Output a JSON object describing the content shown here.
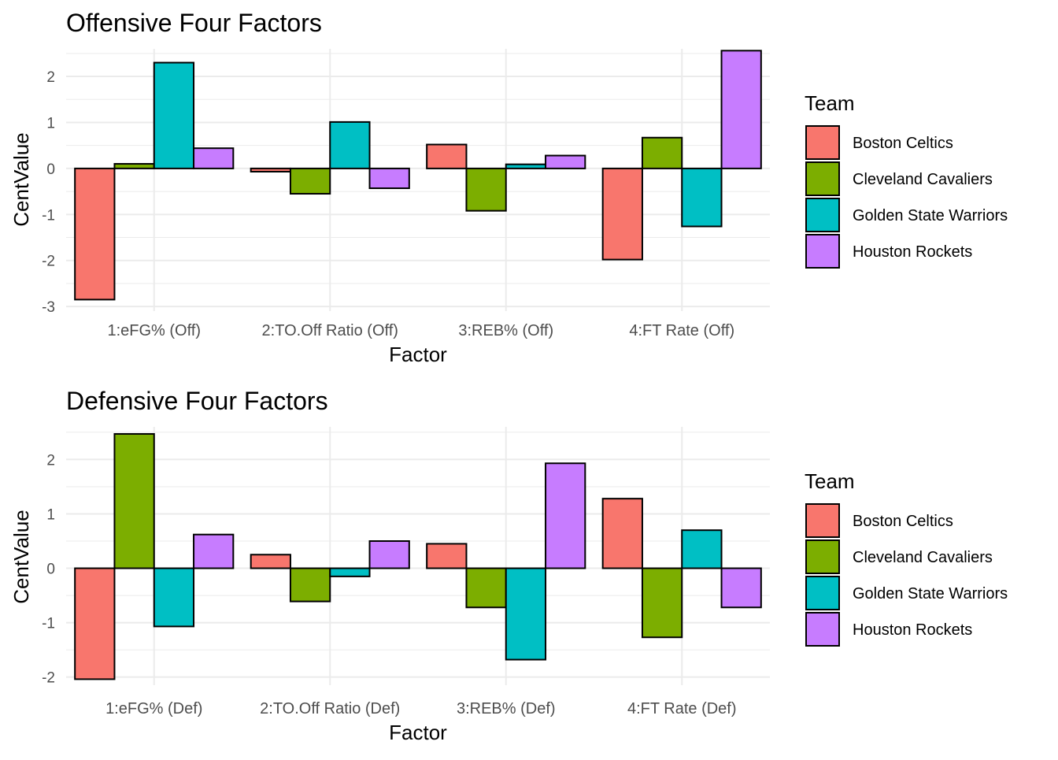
{
  "chart_data": [
    {
      "type": "bar",
      "title": "Offensive Four Factors",
      "xlabel": "Factor",
      "ylabel": "CentValue",
      "categories": [
        "1:eFG% (Off)",
        "2:TO.Off Ratio (Off)",
        "3:REB% (Off)",
        "4:FT Rate (Off)"
      ],
      "ylim": [
        -3.1,
        2.6
      ],
      "yticks": [
        -3,
        -2,
        -1,
        0,
        1,
        2
      ],
      "grid": true,
      "legend": {
        "title": "Team",
        "position": "right"
      },
      "series": [
        {
          "name": "Boston Celtics",
          "color": "#F8766D",
          "values": [
            -2.85,
            -0.07,
            0.52,
            -1.98
          ]
        },
        {
          "name": "Cleveland Cavaliers",
          "color": "#7CAE00",
          "values": [
            0.1,
            -0.55,
            -0.92,
            0.67
          ]
        },
        {
          "name": "Golden State Warriors",
          "color": "#00BFC4",
          "values": [
            2.3,
            1.01,
            0.09,
            -1.26
          ]
        },
        {
          "name": "Houston Rockets",
          "color": "#C77CFF",
          "values": [
            0.44,
            -0.43,
            0.28,
            2.56
          ]
        }
      ]
    },
    {
      "type": "bar",
      "title": "Defensive Four Factors",
      "xlabel": "Factor",
      "ylabel": "CentValue",
      "categories": [
        "1:eFG% (Def)",
        "2:TO.Off Ratio (Def)",
        "3:REB% (Def)",
        "4:FT Rate (Def)"
      ],
      "ylim": [
        -2.15,
        2.6
      ],
      "yticks": [
        -2,
        -1,
        0,
        1,
        2
      ],
      "grid": true,
      "legend": {
        "title": "Team",
        "position": "right"
      },
      "series": [
        {
          "name": "Boston Celtics",
          "color": "#F8766D",
          "values": [
            -2.04,
            0.25,
            0.45,
            1.28
          ]
        },
        {
          "name": "Cleveland Cavaliers",
          "color": "#7CAE00",
          "values": [
            2.47,
            -0.61,
            -0.72,
            -1.27
          ]
        },
        {
          "name": "Golden State Warriors",
          "color": "#00BFC4",
          "values": [
            -1.07,
            -0.15,
            -1.68,
            0.7
          ]
        },
        {
          "name": "Houston Rockets",
          "color": "#C77CFF",
          "values": [
            0.62,
            0.5,
            1.93,
            -0.72
          ]
        }
      ]
    }
  ]
}
